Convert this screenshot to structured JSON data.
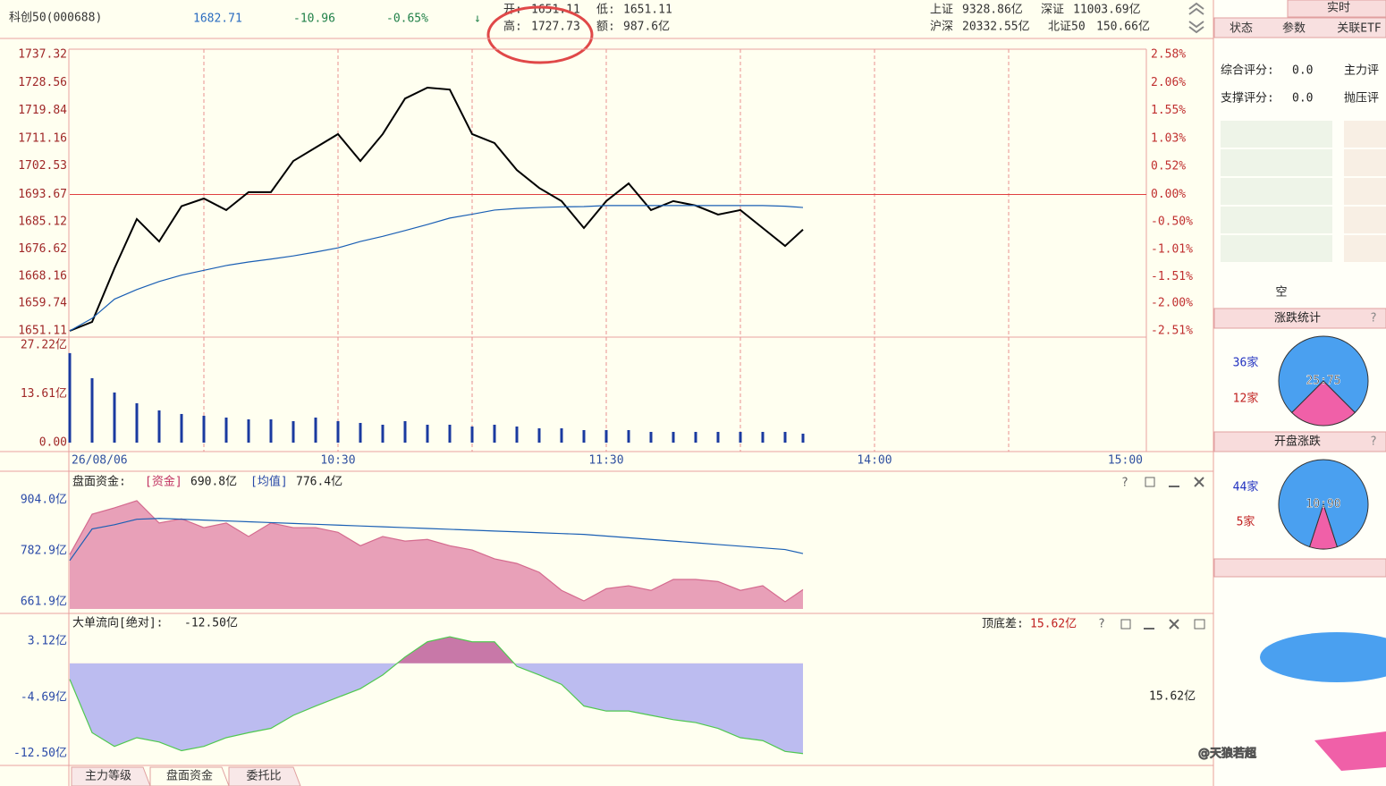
{
  "header": {
    "name": "科创50(000688)",
    "price": "1682.71",
    "change": "-10.96",
    "change_pct": "-0.65%",
    "arrow": "↓",
    "open_label": "开:",
    "open": "1651.11",
    "low_label": "低:",
    "low": "1651.11",
    "high_label": "高:",
    "high": "1727.73",
    "amount_label": "额:",
    "amount": "987.6亿",
    "markets": [
      {
        "name": "上证",
        "value": "9328.86亿"
      },
      {
        "name": "深证",
        "value": "11003.69亿"
      },
      {
        "name": "沪深",
        "value": "20332.55亿"
      },
      {
        "name": "北证50",
        "value": "150.66亿"
      }
    ]
  },
  "chart_data": [
    {
      "type": "line",
      "x": [
        "09:30",
        "09:35",
        "09:40",
        "09:45",
        "09:50",
        "09:55",
        "10:00",
        "10:05",
        "10:10",
        "10:15",
        "10:20",
        "10:25",
        "10:30",
        "10:35",
        "10:40",
        "10:45",
        "10:50",
        "10:55",
        "11:00",
        "11:05",
        "11:10",
        "11:15",
        "11:20",
        "11:25",
        "11:30",
        "13:05",
        "13:10",
        "13:15",
        "13:20",
        "13:25",
        "13:30",
        "13:35",
        "13:40",
        "13:44"
      ],
      "series": [
        {
          "color": "#000000",
          "values": [
            1651.11,
            1653.9,
            1670.6,
            1686,
            1679,
            1690,
            1692.4,
            1688.8,
            1694.4,
            1694.4,
            1704.1,
            1708.3,
            1712.5,
            1704.1,
            1712.5,
            1723.6,
            1727,
            1726.4,
            1712.5,
            1709.7,
            1701.3,
            1695.7,
            1691.6,
            1683.2,
            1691.6,
            1697.1,
            1688.8,
            1691.6,
            1690.2,
            1687.4,
            1688.8,
            1683.2,
            1677.6,
            1682.71
          ]
        },
        {
          "color": "#1a5fb4",
          "values": [
            1651.11,
            1655,
            1661,
            1664,
            1666.5,
            1668.5,
            1670,
            1671.5,
            1672.6,
            1673.5,
            1674.5,
            1675.7,
            1677,
            1679,
            1680.6,
            1682.4,
            1684.3,
            1686.3,
            1687.5,
            1688.8,
            1689.3,
            1689.6,
            1689.8,
            1689.9,
            1690.2,
            1690.2,
            1690.2,
            1690.2,
            1690.2,
            1690.2,
            1690.2,
            1690.2,
            1690,
            1689.6
          ]
        }
      ],
      "ylim": [
        1651.11,
        1737.32
      ],
      "yticks": [
        1737.32,
        1728.56,
        1719.84,
        1711.16,
        1702.53,
        1693.67,
        1685.12,
        1676.62,
        1668.16,
        1659.74,
        1651.11
      ],
      "y2lim": [
        -2.51,
        2.58
      ],
      "y2ticks": [
        {
          "value": 2.58,
          "label": "2.58%"
        },
        {
          "value": 2.06,
          "label": "2.06%"
        },
        {
          "value": 1.55,
          "label": "1.55%"
        },
        {
          "value": 1.03,
          "label": "1.03%"
        },
        {
          "value": 0.52,
          "label": "0.52%"
        },
        {
          "value": 0,
          "label": "0.00%"
        },
        {
          "value": -0.5,
          "label": "-0.50%"
        },
        {
          "value": -1.01,
          "label": "-1.01%"
        },
        {
          "value": -1.51,
          "label": "-1.51%"
        },
        {
          "value": -2,
          "label": "-2.00%"
        },
        {
          "value": -2.51,
          "label": "-2.51%"
        }
      ],
      "reference_line": 1693.67,
      "reference_color": "#e04040",
      "tick_color": "#a02828",
      "y2_tick_color": "#c03030",
      "xlim": [
        "09:30",
        "15:00"
      ],
      "xticks": [
        {
          "value": "09:30",
          "label": "26/08/06"
        },
        "10:30",
        "11:30",
        "14:00",
        "15:00"
      ],
      "xgrid": [
        "10:00",
        "10:30",
        "11:00",
        "11:30",
        "13:30",
        "14:00",
        "14:30"
      ]
    },
    {
      "type": "bar",
      "x": [
        "09:30",
        "09:35",
        "09:40",
        "09:45",
        "09:50",
        "09:55",
        "10:00",
        "10:05",
        "10:10",
        "10:15",
        "10:20",
        "10:25",
        "10:30",
        "10:35",
        "10:40",
        "10:45",
        "10:50",
        "10:55",
        "11:00",
        "11:05",
        "11:10",
        "11:15",
        "11:20",
        "11:25",
        "11:30",
        "13:05",
        "13:10",
        "13:15",
        "13:20",
        "13:25",
        "13:30",
        "13:35",
        "13:40",
        "13:44"
      ],
      "values": [
        25,
        18,
        14,
        11,
        9,
        8,
        7.5,
        7,
        6.5,
        6.5,
        6,
        7,
        6,
        5.5,
        5,
        6,
        5,
        5,
        4.5,
        5,
        4.5,
        4,
        4,
        3.5,
        3.5,
        3.5,
        3,
        3,
        3,
        3,
        3,
        3,
        3,
        2.5
      ],
      "color": "#1a3aa0",
      "ylim": [
        0,
        27.22
      ],
      "yticks": [
        {
          "value": 27.22,
          "label": "27.22亿"
        },
        {
          "value": 13.61,
          "label": "13.61亿"
        },
        {
          "value": 0,
          "label": "0.00"
        }
      ],
      "tick_color": "#a02828"
    },
    {
      "type": "area",
      "title": "盘面资金:",
      "x": [
        "09:30",
        "09:35",
        "09:40",
        "09:45",
        "09:50",
        "09:55",
        "10:00",
        "10:05",
        "10:10",
        "10:15",
        "10:20",
        "10:25",
        "10:30",
        "10:35",
        "10:40",
        "10:45",
        "10:50",
        "10:55",
        "11:00",
        "11:05",
        "11:10",
        "11:15",
        "11:20",
        "11:25",
        "11:30",
        "13:05",
        "13:10",
        "13:15",
        "13:20",
        "13:25",
        "13:30",
        "13:35",
        "13:40",
        "13:44"
      ],
      "series": [
        {
          "name": "[资金]",
          "latest": "690.8亿",
          "color": "#d46a8e",
          "fill": "#e8a0b8",
          "values": [
            774,
            870,
            885,
            902,
            849,
            859,
            838,
            849,
            817,
            849,
            838,
            838,
            827,
            795,
            817,
            806,
            810,
            795,
            785,
            764,
            753,
            732,
            689,
            664,
            693,
            700,
            689,
            715,
            715,
            710,
            689,
            700,
            662,
            690.8
          ]
        },
        {
          "name": "[均值]",
          "latest": "776.4亿",
          "color": "#1a5fb4",
          "values": [
            760,
            835,
            845,
            858,
            860,
            858,
            856,
            854,
            852,
            850,
            848,
            846,
            844,
            842,
            840,
            838,
            836,
            834,
            832,
            830,
            828,
            826,
            824,
            822,
            818,
            814,
            810,
            806,
            802,
            798,
            794,
            790,
            786,
            776.4
          ]
        }
      ],
      "ylim": [
        661.9,
        904.0
      ],
      "yticks": [
        {
          "value": 904.0,
          "label": "904.0亿"
        },
        {
          "value": 782.9,
          "label": "782.9亿"
        },
        {
          "value": 661.9,
          "label": "661.9亿"
        }
      ],
      "tick_color": "#2a4aa8"
    },
    {
      "type": "area",
      "title": "大单流向[绝对]:",
      "latest": "-12.50亿",
      "range_title": "顶底差:",
      "range_value": "15.62亿",
      "x": [
        "09:30",
        "09:35",
        "09:40",
        "09:45",
        "09:50",
        "09:55",
        "10:00",
        "10:05",
        "10:10",
        "10:15",
        "10:20",
        "10:25",
        "10:30",
        "10:35",
        "10:40",
        "10:45",
        "10:50",
        "10:55",
        "11:00",
        "11:05",
        "11:10",
        "11:15",
        "11:20",
        "11:25",
        "11:30",
        "13:05",
        "13:10",
        "13:15",
        "13:20",
        "13:25",
        "13:30",
        "13:35",
        "13:40",
        "13:44"
      ],
      "series": [
        {
          "color": "#50c850",
          "positive_color": "#c878a8",
          "negative_color": "#bcbcf0",
          "values": [
            -2.2,
            -9.6,
            -11.5,
            -10.3,
            -10.9,
            -12.1,
            -11.5,
            -10.3,
            -9.6,
            -9,
            -7.2,
            -5.9,
            -4.7,
            -3.5,
            -1.6,
            0.9,
            3,
            3.7,
            3,
            3,
            -0.4,
            -1.6,
            -2.9,
            -5.9,
            -6.6,
            -6.6,
            -7.2,
            -7.8,
            -8.2,
            -9,
            -10.3,
            -10.7,
            -12.2,
            -12.5
          ]
        }
      ],
      "ylim": [
        -13.4,
        5.2
      ],
      "yticks": [
        {
          "value": 3.12,
          "label": "3.12亿"
        },
        {
          "value": -4.69,
          "label": "-4.69亿"
        },
        {
          "value": -12.5,
          "label": "-12.50亿"
        }
      ],
      "tick_color": "#2a4aa8"
    }
  ],
  "right_panel": {
    "mode": "实时",
    "tabs": [
      "状态",
      "参数",
      "关联ETF"
    ],
    "scores": [
      {
        "label": "综合评分:",
        "value": "0.0"
      },
      {
        "label": "主力评"
      },
      {
        "label": "支撑评分:",
        "value": "0.0"
      },
      {
        "label": "抛压评"
      }
    ],
    "empty_label": "空",
    "stats": [
      {
        "title": "涨跌统计",
        "up": "36家",
        "down": "12家",
        "values": [
          25,
          75
        ],
        "colors": [
          "#f060a8",
          "#4aa0f0"
        ],
        "ratio_label": "25:75"
      },
      {
        "title": "开盘涨跌",
        "up": "44家",
        "down": "5家",
        "values": [
          10,
          90
        ],
        "colors": [
          "#f060a8",
          "#4aa0f0"
        ],
        "ratio_label": "10:90"
      }
    ]
  },
  "tabs": [
    "主力等级",
    "盘面资金",
    "委托比"
  ],
  "watermark": "@天狼若超"
}
